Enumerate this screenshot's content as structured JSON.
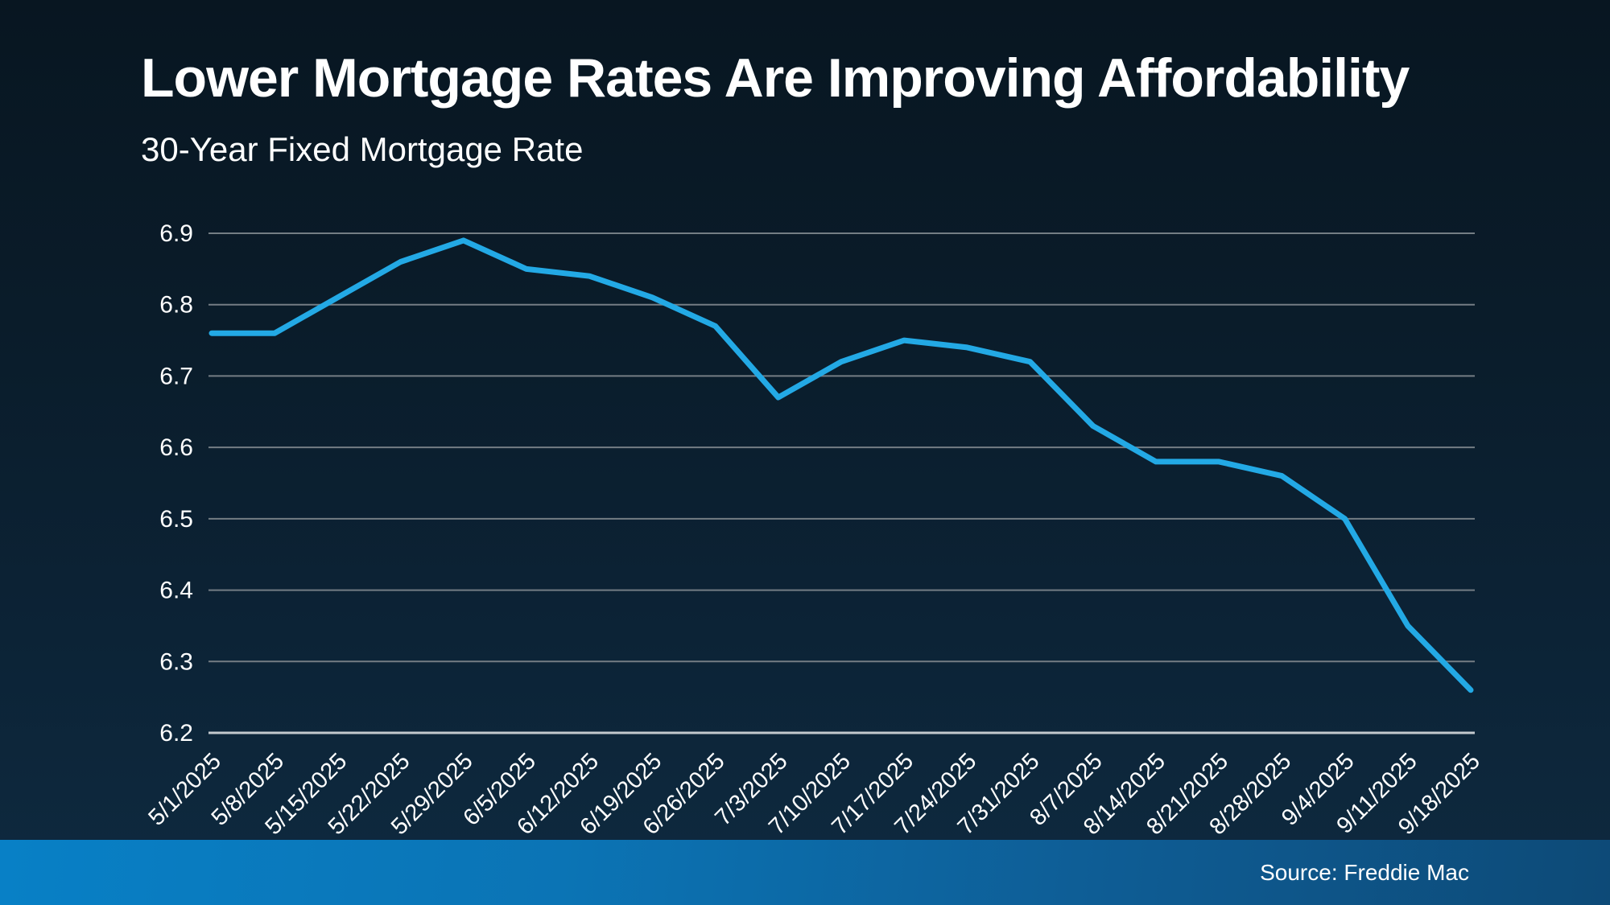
{
  "chart_data": {
    "type": "line",
    "title": "Lower Mortgage Rates Are Improving Affordability",
    "subtitle": "30-Year Fixed Mortgage Rate",
    "series_name": "30-Year Fixed Mortgage Rate",
    "categories": [
      "5/1/2025",
      "5/8/2025",
      "5/15/2025",
      "5/22/2025",
      "5/29/2025",
      "6/5/2025",
      "6/12/2025",
      "6/19/2025",
      "6/26/2025",
      "7/3/2025",
      "7/10/2025",
      "7/17/2025",
      "7/24/2025",
      "7/31/2025",
      "8/7/2025",
      "8/14/2025",
      "8/21/2025",
      "8/28/2025",
      "9/4/2025",
      "9/11/2025",
      "9/18/2025"
    ],
    "values": [
      6.76,
      6.76,
      6.81,
      6.86,
      6.89,
      6.85,
      6.84,
      6.81,
      6.77,
      6.67,
      6.72,
      6.75,
      6.74,
      6.72,
      6.63,
      6.58,
      6.58,
      6.56,
      6.5,
      6.35,
      6.26
    ],
    "ylim": [
      6.2,
      6.9
    ],
    "yticks": [
      6.2,
      6.3,
      6.4,
      6.5,
      6.6,
      6.7,
      6.8,
      6.9
    ],
    "ytick_labels": [
      "6.2",
      "6.3",
      "6.4",
      "6.5",
      "6.6",
      "6.7",
      "6.8",
      "6.9"
    ],
    "xlabel": "",
    "ylabel": "",
    "grid": "horizontal",
    "legend": "none",
    "colors": {
      "line": "#23a9e5",
      "gridline": "#747d84",
      "axis_line": "#c3c9ce",
      "tick_text": "#ffffff"
    }
  },
  "footer": {
    "source": "Source: Freddie Mac",
    "bar_gradient_left": "#0880c6",
    "bar_gradient_right": "#0d4a77"
  }
}
